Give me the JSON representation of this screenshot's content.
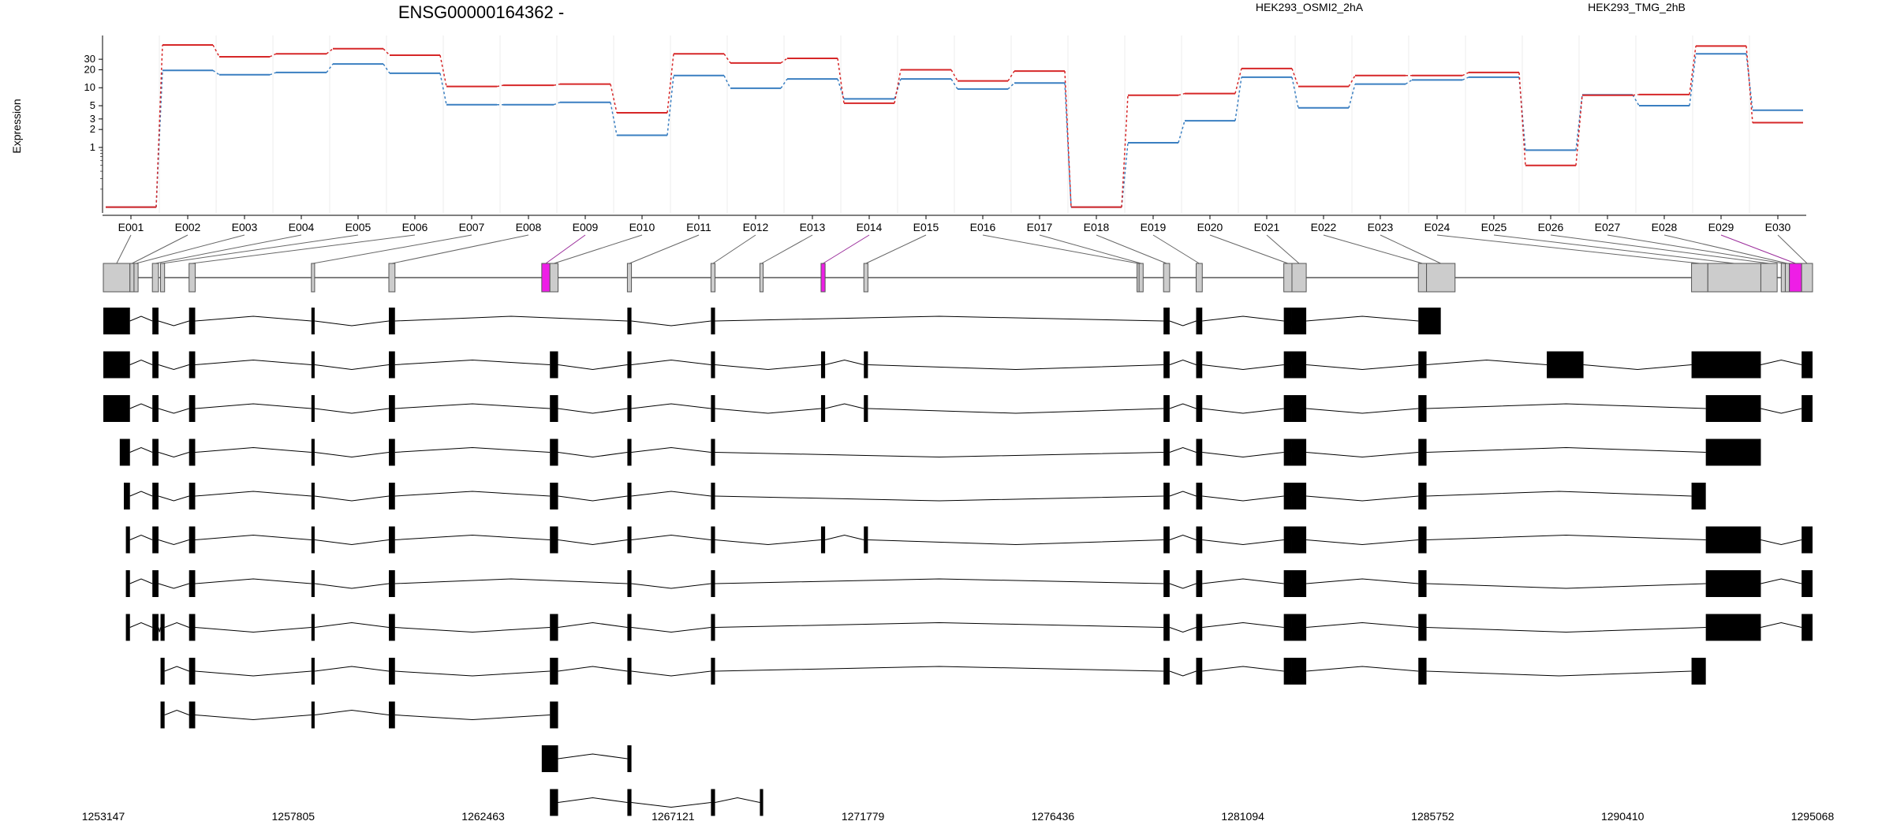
{
  "chart_data": {
    "type": "line",
    "title": "ENSG00000164362 -",
    "ylabel": "Expression",
    "xlabel": "",
    "yscale": "log",
    "yticks": [
      1,
      2,
      3,
      5,
      10,
      20,
      30
    ],
    "ylim": [
      0.08,
      75
    ],
    "grid": false,
    "legend_placement": "top-right",
    "colors": {
      "series1": "#d62728",
      "series2": "#3a7fc1",
      "highlight": "#ee1ee6",
      "exon_fill": "#cccccc"
    },
    "categories": [
      "E001",
      "E002",
      "E003",
      "E004",
      "E005",
      "E006",
      "E007",
      "E008",
      "E009",
      "E010",
      "E011",
      "E012",
      "E013",
      "E014",
      "E015",
      "E016",
      "E017",
      "E018",
      "E019",
      "E020",
      "E021",
      "E022",
      "E023",
      "E024",
      "E025",
      "E026",
      "E027",
      "E028",
      "E029",
      "E030"
    ],
    "series": [
      {
        "name": "HEK293_OSMI2_2hA",
        "values": [
          0.1,
          52,
          33,
          37,
          45,
          35,
          10.5,
          11,
          11.5,
          3.8,
          37,
          26,
          31,
          5.5,
          20,
          13,
          19,
          0.1,
          7.5,
          8,
          21,
          10.5,
          16,
          16,
          18,
          0.5,
          7.5,
          7.7,
          50,
          2.6
        ]
      },
      {
        "name": "HEK293_TMG_2hB",
        "values": [
          0.1,
          19.5,
          16.5,
          18,
          25,
          17.5,
          5.2,
          5.2,
          5.7,
          1.6,
          16,
          9.8,
          14,
          6.5,
          14,
          9.5,
          12,
          0.1,
          1.2,
          2.8,
          15,
          4.6,
          11.5,
          13.5,
          15,
          0.9,
          7.6,
          5,
          37,
          4.2
        ]
      }
    ],
    "genomic_ticks": [
      "1253147",
      "1257805",
      "1262463",
      "1267121",
      "1271779",
      "1276436",
      "1281094",
      "1285752",
      "1290410",
      "1295068"
    ],
    "gene_start": 1253147,
    "gene_end": 1295068,
    "highlighted_exons": [
      "E009",
      "E014",
      "E029"
    ],
    "exons": [
      {
        "id": "E001",
        "start": 1253147,
        "end": 1253800
      },
      {
        "id": "E002",
        "start": 1253800,
        "end": 1253900
      },
      {
        "id": "E003",
        "start": 1253900,
        "end": 1254000
      },
      {
        "id": "E004",
        "start": 1254350,
        "end": 1254500
      },
      {
        "id": "E005",
        "start": 1254550,
        "end": 1254650
      },
      {
        "id": "E006",
        "start": 1255250,
        "end": 1255400
      },
      {
        "id": "E007",
        "start": 1258250,
        "end": 1258330
      },
      {
        "id": "E008",
        "start": 1260150,
        "end": 1260300
      },
      {
        "id": "E009",
        "start": 1263900,
        "end": 1264100
      },
      {
        "id": "E010",
        "start": 1264100,
        "end": 1264300
      },
      {
        "id": "E011",
        "start": 1266000,
        "end": 1266100
      },
      {
        "id": "E012",
        "start": 1268050,
        "end": 1268150
      },
      {
        "id": "E013",
        "start": 1269250,
        "end": 1269330
      },
      {
        "id": "E014",
        "start": 1270750,
        "end": 1270850
      },
      {
        "id": "E015",
        "start": 1271800,
        "end": 1271900
      },
      {
        "id": "E016",
        "start": 1278500,
        "end": 1278550
      },
      {
        "id": "E017",
        "start": 1278550,
        "end": 1278650
      },
      {
        "id": "E018",
        "start": 1279150,
        "end": 1279300
      },
      {
        "id": "E019",
        "start": 1279950,
        "end": 1280100
      },
      {
        "id": "E020",
        "start": 1282100,
        "end": 1282300
      },
      {
        "id": "E021",
        "start": 1282300,
        "end": 1282650
      },
      {
        "id": "E022",
        "start": 1285400,
        "end": 1285600
      },
      {
        "id": "E023",
        "start": 1285600,
        "end": 1286300
      },
      {
        "id": "E024",
        "start": 1292100,
        "end": 1292500
      },
      {
        "id": "E025",
        "start": 1292500,
        "end": 1293800
      },
      {
        "id": "E026",
        "start": 1293800,
        "end": 1294200
      },
      {
        "id": "E027",
        "start": 1294300,
        "end": 1294400
      },
      {
        "id": "E028",
        "start": 1294400,
        "end": 1294500
      },
      {
        "id": "E029",
        "start": 1294500,
        "end": 1294800
      },
      {
        "id": "E030",
        "start": 1294800,
        "end": 1295068
      }
    ],
    "transcripts": [
      [
        [
          1253147,
          1253800
        ],
        [
          1254350,
          1254500
        ],
        [
          1255250,
          1255400
        ],
        [
          1258250,
          1258330
        ],
        [
          1260150,
          1260300
        ],
        [
          1266000,
          1266100
        ],
        [
          1268050,
          1268150
        ],
        [
          1279150,
          1279300
        ],
        [
          1279950,
          1280100
        ],
        [
          1282100,
          1282300
        ],
        [
          1282300,
          1282650
        ],
        [
          1285400,
          1285950
        ]
      ],
      [
        [
          1253147,
          1253800
        ],
        [
          1254350,
          1254500
        ],
        [
          1255250,
          1255400
        ],
        [
          1258250,
          1258330
        ],
        [
          1260150,
          1260300
        ],
        [
          1264100,
          1264300
        ],
        [
          1266000,
          1266100
        ],
        [
          1268050,
          1268150
        ],
        [
          1270750,
          1270850
        ],
        [
          1271800,
          1271900
        ],
        [
          1279150,
          1279300
        ],
        [
          1279950,
          1280100
        ],
        [
          1282100,
          1282300
        ],
        [
          1282300,
          1282650
        ],
        [
          1285400,
          1285600
        ],
        [
          1288550,
          1289450
        ],
        [
          1292100,
          1293800
        ],
        [
          1294800,
          1295068
        ]
      ],
      [
        [
          1253147,
          1253800
        ],
        [
          1254350,
          1254500
        ],
        [
          1255250,
          1255400
        ],
        [
          1258250,
          1258330
        ],
        [
          1260150,
          1260300
        ],
        [
          1264100,
          1264300
        ],
        [
          1266000,
          1266100
        ],
        [
          1268050,
          1268150
        ],
        [
          1270750,
          1270850
        ],
        [
          1271800,
          1271900
        ],
        [
          1279150,
          1279300
        ],
        [
          1279950,
          1280100
        ],
        [
          1282100,
          1282300
        ],
        [
          1282300,
          1282650
        ],
        [
          1285400,
          1285600
        ],
        [
          1292450,
          1293800
        ],
        [
          1294800,
          1295068
        ]
      ],
      [
        [
          1253550,
          1253800
        ],
        [
          1254350,
          1254500
        ],
        [
          1255250,
          1255400
        ],
        [
          1258250,
          1258330
        ],
        [
          1260150,
          1260300
        ],
        [
          1264100,
          1264300
        ],
        [
          1266000,
          1266100
        ],
        [
          1268050,
          1268150
        ],
        [
          1279150,
          1279300
        ],
        [
          1279950,
          1280100
        ],
        [
          1282100,
          1282300
        ],
        [
          1282300,
          1282650
        ],
        [
          1285400,
          1285600
        ],
        [
          1292450,
          1293800
        ]
      ],
      [
        [
          1253650,
          1253800
        ],
        [
          1254350,
          1254500
        ],
        [
          1255250,
          1255400
        ],
        [
          1258250,
          1258330
        ],
        [
          1260150,
          1260300
        ],
        [
          1264100,
          1264300
        ],
        [
          1266000,
          1266100
        ],
        [
          1268050,
          1268150
        ],
        [
          1279150,
          1279300
        ],
        [
          1279950,
          1280100
        ],
        [
          1282100,
          1282300
        ],
        [
          1282300,
          1282650
        ],
        [
          1285400,
          1285600
        ],
        [
          1292100,
          1292450
        ]
      ],
      [
        [
          1253700,
          1253800
        ],
        [
          1254350,
          1254500
        ],
        [
          1255250,
          1255400
        ],
        [
          1258250,
          1258330
        ],
        [
          1260150,
          1260300
        ],
        [
          1264100,
          1264300
        ],
        [
          1266000,
          1266100
        ],
        [
          1268050,
          1268150
        ],
        [
          1270750,
          1270850
        ],
        [
          1271800,
          1271900
        ],
        [
          1279150,
          1279300
        ],
        [
          1279950,
          1280100
        ],
        [
          1282100,
          1282300
        ],
        [
          1282300,
          1282650
        ],
        [
          1285400,
          1285600
        ],
        [
          1292450,
          1293800
        ],
        [
          1294800,
          1295068
        ]
      ],
      [
        [
          1253700,
          1253800
        ],
        [
          1254350,
          1254500
        ],
        [
          1255250,
          1255400
        ],
        [
          1258250,
          1258330
        ],
        [
          1260150,
          1260300
        ],
        [
          1266000,
          1266100
        ],
        [
          1268050,
          1268150
        ],
        [
          1279150,
          1279300
        ],
        [
          1279950,
          1280100
        ],
        [
          1282100,
          1282300
        ],
        [
          1282300,
          1282650
        ],
        [
          1285400,
          1285600
        ],
        [
          1292450,
          1293800
        ],
        [
          1294800,
          1295068
        ]
      ],
      [
        [
          1253700,
          1253800
        ],
        [
          1254350,
          1254500
        ],
        [
          1254550,
          1254650
        ],
        [
          1255250,
          1255400
        ],
        [
          1258250,
          1258330
        ],
        [
          1260150,
          1260300
        ],
        [
          1264100,
          1264300
        ],
        [
          1266000,
          1266100
        ],
        [
          1268050,
          1268150
        ],
        [
          1279150,
          1279300
        ],
        [
          1279950,
          1280100
        ],
        [
          1282100,
          1282300
        ],
        [
          1282300,
          1282650
        ],
        [
          1285400,
          1285600
        ],
        [
          1292450,
          1293800
        ],
        [
          1294800,
          1295068
        ]
      ],
      [
        [
          1254550,
          1254650
        ],
        [
          1255250,
          1255400
        ],
        [
          1258250,
          1258330
        ],
        [
          1260150,
          1260300
        ],
        [
          1264100,
          1264300
        ],
        [
          1266000,
          1266100
        ],
        [
          1268050,
          1268150
        ],
        [
          1279150,
          1279300
        ],
        [
          1279950,
          1280100
        ],
        [
          1282100,
          1282300
        ],
        [
          1282300,
          1282650
        ],
        [
          1285400,
          1285600
        ],
        [
          1292100,
          1292450
        ]
      ],
      [
        [
          1254550,
          1254650
        ],
        [
          1255250,
          1255400
        ],
        [
          1258250,
          1258330
        ],
        [
          1260150,
          1260300
        ],
        [
          1264100,
          1264300
        ]
      ],
      [
        [
          1263900,
          1264300
        ],
        [
          1266000,
          1266100
        ]
      ],
      [
        [
          1264100,
          1264300
        ],
        [
          1266000,
          1266100
        ],
        [
          1268050,
          1268150
        ],
        [
          1269250,
          1269330
        ]
      ]
    ]
  }
}
